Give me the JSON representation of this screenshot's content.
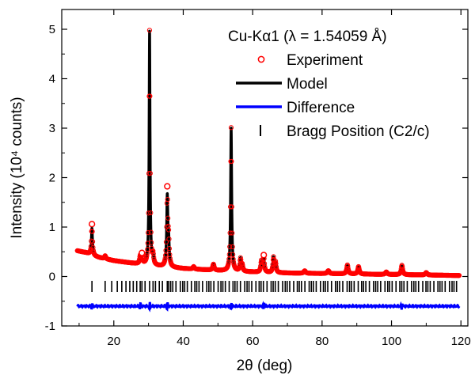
{
  "chart_data": {
    "type": "line",
    "xlabel": "2θ (deg)",
    "ylabel": "Intensity (10⁴ counts)",
    "xlim": [
      5,
      122
    ],
    "ylim": [
      -1,
      5.4
    ],
    "xticks": [
      20,
      40,
      60,
      80,
      100,
      120
    ],
    "yticks": [
      -1,
      0,
      1,
      2,
      3,
      4,
      5
    ],
    "grid": false,
    "legend": {
      "placement": "top-right",
      "title": "Cu-Kα1 (λ = 1.54059 Å)",
      "entries": [
        {
          "label": "Experiment",
          "series": "Experiment",
          "marker": "open-circle",
          "color": "#ff0000"
        },
        {
          "label": "Model",
          "series": "Model",
          "marker": "line",
          "color": "#000000"
        },
        {
          "label": "Difference",
          "series": "Difference",
          "marker": "line",
          "color": "#0000ff"
        },
        {
          "label": "Bragg Position (C2/c)",
          "series": "Bragg Position",
          "marker": "vertical-tick",
          "color": "#000000"
        }
      ]
    },
    "background": {
      "x": [
        9.5,
        12,
        14,
        16,
        20,
        25,
        30,
        40,
        50,
        60,
        70,
        80,
        90,
        100,
        110,
        119.5
      ],
      "y": [
        0.52,
        0.48,
        0.42,
        0.38,
        0.32,
        0.27,
        0.22,
        0.16,
        0.12,
        0.09,
        0.07,
        0.06,
        0.05,
        0.04,
        0.03,
        0.02
      ]
    },
    "peaks": [
      {
        "x": 13.7,
        "height": 0.55,
        "width": 0.18
      },
      {
        "x": 17.5,
        "height": 0.06,
        "width": 0.2
      },
      {
        "x": 27.6,
        "height": 0.15,
        "width": 0.2
      },
      {
        "x": 28.1,
        "height": 0.13,
        "width": 0.2
      },
      {
        "x": 30.3,
        "height": 4.75,
        "width": 0.16
      },
      {
        "x": 31.3,
        "height": 0.18,
        "width": 0.2
      },
      {
        "x": 35.4,
        "height": 1.4,
        "width": 0.2
      },
      {
        "x": 35.8,
        "height": 0.45,
        "width": 0.2
      },
      {
        "x": 43.0,
        "height": 0.05,
        "width": 0.25
      },
      {
        "x": 48.7,
        "height": 0.12,
        "width": 0.25
      },
      {
        "x": 53.8,
        "height": 2.9,
        "width": 0.18
      },
      {
        "x": 56.5,
        "height": 0.25,
        "width": 0.2
      },
      {
        "x": 57.0,
        "height": 0.12,
        "width": 0.2
      },
      {
        "x": 62.5,
        "height": 0.22,
        "width": 0.2
      },
      {
        "x": 63.2,
        "height": 0.28,
        "width": 0.2
      },
      {
        "x": 66.0,
        "height": 0.3,
        "width": 0.2
      },
      {
        "x": 66.6,
        "height": 0.2,
        "width": 0.2
      },
      {
        "x": 75.0,
        "height": 0.05,
        "width": 0.3
      },
      {
        "x": 81.8,
        "height": 0.06,
        "width": 0.3
      },
      {
        "x": 87.3,
        "height": 0.18,
        "width": 0.25
      },
      {
        "x": 90.5,
        "height": 0.15,
        "width": 0.25
      },
      {
        "x": 98.5,
        "height": 0.05,
        "width": 0.3
      },
      {
        "x": 103.0,
        "height": 0.19,
        "width": 0.25
      },
      {
        "x": 110.0,
        "height": 0.05,
        "width": 0.3
      }
    ],
    "experiment_peak_offsets": [
      {
        "x": 13.7,
        "delta": 0.08
      },
      {
        "x": 28.1,
        "delta": 0.06
      },
      {
        "x": 35.4,
        "delta": 0.14
      },
      {
        "x": 63.2,
        "delta": 0.05
      }
    ],
    "difference": {
      "baseline": -0.6,
      "features": [
        13.7,
        27.6,
        30.3,
        35.4,
        53.8,
        63.2,
        103.0
      ]
    },
    "bragg_positions": {
      "y": -0.2,
      "start": 13.7,
      "end": 119.5,
      "first_positions": [
        13.7,
        17.5,
        19.4,
        21.0,
        22.3,
        23.5,
        24.6,
        25.6,
        26.6,
        27.6,
        28.1,
        29.0,
        30.3,
        31.3,
        32.0,
        33.1,
        34.0,
        35.4,
        35.8
      ]
    }
  }
}
